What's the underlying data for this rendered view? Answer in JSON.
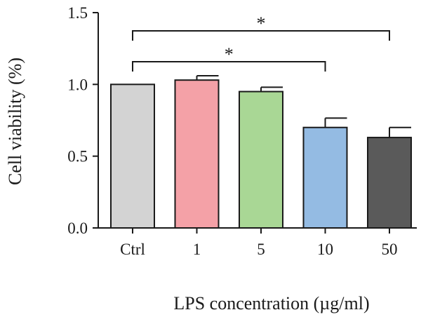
{
  "chart_data": {
    "type": "bar",
    "ylabel": "Cell viability (%)",
    "xlabel": "LPS concentration (µg/ml)",
    "categories": [
      "Ctrl",
      "1",
      "5",
      "10",
      "50"
    ],
    "values": [
      1.0,
      1.03,
      0.95,
      0.7,
      0.63
    ],
    "errors": [
      0.0,
      0.03,
      0.03,
      0.065,
      0.07
    ],
    "colors": [
      "#d3d3d3",
      "#f4a1a7",
      "#a9d795",
      "#94bbe3",
      "#5a5a5a"
    ],
    "ylim": [
      0,
      1.5
    ],
    "yticks": [
      "0.0",
      "0.5",
      "1.0",
      "1.5"
    ],
    "grid": false,
    "significance": [
      {
        "from": "Ctrl",
        "to": "50",
        "label": "*"
      },
      {
        "from": "Ctrl",
        "to": "10",
        "label": "*"
      }
    ]
  }
}
